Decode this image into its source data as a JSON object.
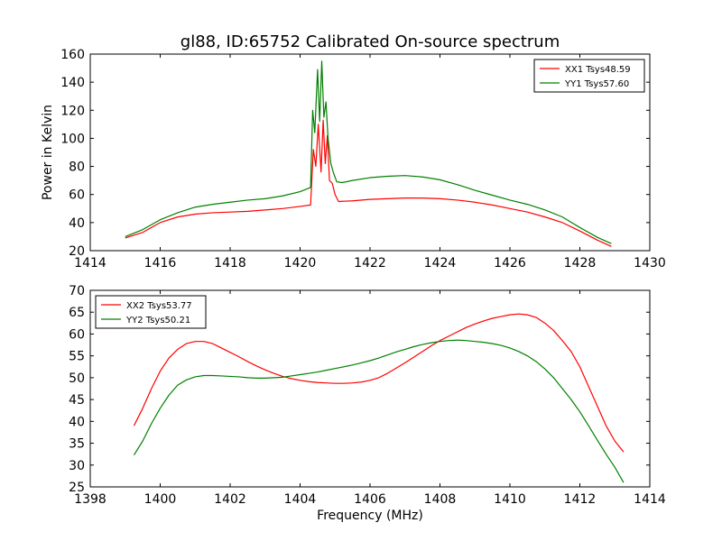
{
  "chart_data": [
    {
      "type": "line",
      "title": "gl88, ID:65752 Calibrated On-source spectrum",
      "xlabel": "",
      "ylabel": "Power in Kelvin",
      "xlim": [
        1414,
        1430
      ],
      "ylim": [
        20,
        160
      ],
      "xticks": [
        "1414",
        "1416",
        "1418",
        "1420",
        "1422",
        "1424",
        "1426",
        "1428",
        "1430"
      ],
      "yticks": [
        "20",
        "40",
        "60",
        "80",
        "100",
        "120",
        "140",
        "160"
      ],
      "grid": false,
      "legend_position": "top-right",
      "series": [
        {
          "name": "XX1 Tsys48.59",
          "color": "#ff0000",
          "points": [
            [
              1415.0,
              29
            ],
            [
              1415.5,
              33
            ],
            [
              1416.0,
              40
            ],
            [
              1416.5,
              44
            ],
            [
              1417.0,
              46
            ],
            [
              1417.5,
              47
            ],
            [
              1418.0,
              47.5
            ],
            [
              1418.5,
              48
            ],
            [
              1419.0,
              49
            ],
            [
              1419.5,
              50
            ],
            [
              1420.0,
              51.5
            ],
            [
              1420.3,
              52.5
            ],
            [
              1420.38,
              92
            ],
            [
              1420.45,
              80
            ],
            [
              1420.52,
              110
            ],
            [
              1420.6,
              76
            ],
            [
              1420.66,
              113
            ],
            [
              1420.72,
              82
            ],
            [
              1420.78,
              102
            ],
            [
              1420.84,
              70
            ],
            [
              1420.92,
              68
            ],
            [
              1421.0,
              60
            ],
            [
              1421.1,
              55
            ],
            [
              1421.5,
              55.5
            ],
            [
              1422.0,
              56.5
            ],
            [
              1422.5,
              57
            ],
            [
              1423.0,
              57.5
            ],
            [
              1423.5,
              57.5
            ],
            [
              1424.0,
              57
            ],
            [
              1424.5,
              56
            ],
            [
              1425.0,
              54.5
            ],
            [
              1425.5,
              52.5
            ],
            [
              1426.0,
              50
            ],
            [
              1426.5,
              47.5
            ],
            [
              1427.0,
              44
            ],
            [
              1427.5,
              40
            ],
            [
              1428.0,
              34
            ],
            [
              1428.5,
              27.5
            ],
            [
              1428.9,
              23
            ]
          ]
        },
        {
          "name": "YY1 Tsys57.60",
          "color": "#008000",
          "points": [
            [
              1415.0,
              30
            ],
            [
              1415.5,
              35
            ],
            [
              1416.0,
              42
            ],
            [
              1416.5,
              47
            ],
            [
              1417.0,
              51
            ],
            [
              1417.5,
              53
            ],
            [
              1418.0,
              54.5
            ],
            [
              1418.5,
              56
            ],
            [
              1419.0,
              57
            ],
            [
              1419.5,
              59
            ],
            [
              1420.0,
              62
            ],
            [
              1420.3,
              65
            ],
            [
              1420.36,
              120
            ],
            [
              1420.42,
              104
            ],
            [
              1420.5,
              149
            ],
            [
              1420.56,
              112
            ],
            [
              1420.62,
              155
            ],
            [
              1420.68,
              115
            ],
            [
              1420.74,
              126
            ],
            [
              1420.8,
              100
            ],
            [
              1420.88,
              82
            ],
            [
              1420.96,
              75
            ],
            [
              1421.05,
              69
            ],
            [
              1421.2,
              68.5
            ],
            [
              1421.5,
              70
            ],
            [
              1422.0,
              72
            ],
            [
              1422.5,
              73
            ],
            [
              1423.0,
              73.5
            ],
            [
              1423.5,
              72.5
            ],
            [
              1424.0,
              70.5
            ],
            [
              1424.5,
              67
            ],
            [
              1425.0,
              63
            ],
            [
              1425.5,
              59.5
            ],
            [
              1426.0,
              56
            ],
            [
              1426.5,
              53
            ],
            [
              1427.0,
              49
            ],
            [
              1427.5,
              44
            ],
            [
              1428.0,
              36.5
            ],
            [
              1428.5,
              29.5
            ],
            [
              1428.9,
              25
            ]
          ]
        }
      ]
    },
    {
      "type": "line",
      "title": "",
      "xlabel": "Frequency (MHz)",
      "ylabel": "",
      "xlim": [
        1398,
        1414
      ],
      "ylim": [
        25,
        70
      ],
      "xticks": [
        "1398",
        "1400",
        "1402",
        "1404",
        "1406",
        "1408",
        "1410",
        "1412",
        "1414"
      ],
      "yticks": [
        "25",
        "30",
        "35",
        "40",
        "45",
        "50",
        "55",
        "60",
        "65",
        "70"
      ],
      "grid": false,
      "legend_position": "top-left",
      "series": [
        {
          "name": "XX2 Tsys53.77",
          "color": "#ff0000",
          "points": [
            [
              1399.25,
              39
            ],
            [
              1399.5,
              43
            ],
            [
              1399.75,
              47.5
            ],
            [
              1400.0,
              51.5
            ],
            [
              1400.25,
              54.5
            ],
            [
              1400.5,
              56.5
            ],
            [
              1400.75,
              57.8
            ],
            [
              1401.0,
              58.3
            ],
            [
              1401.25,
              58.3
            ],
            [
              1401.5,
              57.8
            ],
            [
              1401.75,
              56.8
            ],
            [
              1402.0,
              55.8
            ],
            [
              1402.25,
              54.8
            ],
            [
              1402.5,
              53.7
            ],
            [
              1402.75,
              52.7
            ],
            [
              1403.0,
              51.8
            ],
            [
              1403.25,
              51.0
            ],
            [
              1403.5,
              50.3
            ],
            [
              1403.75,
              49.8
            ],
            [
              1404.0,
              49.4
            ],
            [
              1404.25,
              49.1
            ],
            [
              1404.5,
              48.9
            ],
            [
              1404.75,
              48.8
            ],
            [
              1405.0,
              48.7
            ],
            [
              1405.25,
              48.7
            ],
            [
              1405.5,
              48.8
            ],
            [
              1405.75,
              49.0
            ],
            [
              1406.0,
              49.4
            ],
            [
              1406.25,
              50.0
            ],
            [
              1406.5,
              51.0
            ],
            [
              1406.75,
              52.2
            ],
            [
              1407.0,
              53.4
            ],
            [
              1407.25,
              54.7
            ],
            [
              1407.5,
              56.0
            ],
            [
              1407.75,
              57.3
            ],
            [
              1408.0,
              58.5
            ],
            [
              1408.25,
              59.5
            ],
            [
              1408.5,
              60.5
            ],
            [
              1408.75,
              61.5
            ],
            [
              1409.0,
              62.3
            ],
            [
              1409.25,
              63.0
            ],
            [
              1409.5,
              63.6
            ],
            [
              1409.75,
              64.0
            ],
            [
              1410.0,
              64.4
            ],
            [
              1410.25,
              64.6
            ],
            [
              1410.5,
              64.4
            ],
            [
              1410.75,
              63.8
            ],
            [
              1411.0,
              62.5
            ],
            [
              1411.25,
              60.8
            ],
            [
              1411.5,
              58.5
            ],
            [
              1411.75,
              56.0
            ],
            [
              1412.0,
              52.5
            ],
            [
              1412.25,
              48.0
            ],
            [
              1412.5,
              43.5
            ],
            [
              1412.75,
              39.0
            ],
            [
              1413.0,
              35.5
            ],
            [
              1413.25,
              33.0
            ]
          ]
        },
        {
          "name": "YY2 Tsys50.21",
          "color": "#008000",
          "points": [
            [
              1399.25,
              32.3
            ],
            [
              1399.5,
              35.5
            ],
            [
              1399.75,
              39.5
            ],
            [
              1400.0,
              43.0
            ],
            [
              1400.25,
              46.0
            ],
            [
              1400.5,
              48.3
            ],
            [
              1400.75,
              49.5
            ],
            [
              1401.0,
              50.2
            ],
            [
              1401.25,
              50.5
            ],
            [
              1401.5,
              50.5
            ],
            [
              1401.75,
              50.4
            ],
            [
              1402.0,
              50.3
            ],
            [
              1402.25,
              50.2
            ],
            [
              1402.5,
              50.0
            ],
            [
              1402.75,
              49.9
            ],
            [
              1403.0,
              49.9
            ],
            [
              1403.25,
              50.0
            ],
            [
              1403.5,
              50.1
            ],
            [
              1403.75,
              50.4
            ],
            [
              1404.0,
              50.7
            ],
            [
              1404.25,
              51.0
            ],
            [
              1404.5,
              51.3
            ],
            [
              1404.75,
              51.7
            ],
            [
              1405.0,
              52.1
            ],
            [
              1405.25,
              52.5
            ],
            [
              1405.5,
              52.9
            ],
            [
              1405.75,
              53.4
            ],
            [
              1406.0,
              53.9
            ],
            [
              1406.25,
              54.5
            ],
            [
              1406.5,
              55.2
            ],
            [
              1406.75,
              55.9
            ],
            [
              1407.0,
              56.5
            ],
            [
              1407.25,
              57.1
            ],
            [
              1407.5,
              57.6
            ],
            [
              1407.75,
              58.0
            ],
            [
              1408.0,
              58.3
            ],
            [
              1408.25,
              58.5
            ],
            [
              1408.5,
              58.6
            ],
            [
              1408.75,
              58.5
            ],
            [
              1409.0,
              58.3
            ],
            [
              1409.25,
              58.1
            ],
            [
              1409.5,
              57.8
            ],
            [
              1409.75,
              57.4
            ],
            [
              1410.0,
              56.8
            ],
            [
              1410.25,
              56.0
            ],
            [
              1410.5,
              55.0
            ],
            [
              1410.75,
              53.7
            ],
            [
              1411.0,
              52.0
            ],
            [
              1411.25,
              50.0
            ],
            [
              1411.5,
              47.5
            ],
            [
              1411.75,
              45.0
            ],
            [
              1412.0,
              42.2
            ],
            [
              1412.25,
              39.0
            ],
            [
              1412.5,
              35.7
            ],
            [
              1412.75,
              32.5
            ],
            [
              1413.0,
              29.5
            ],
            [
              1413.25,
              26.0
            ]
          ]
        }
      ]
    }
  ]
}
